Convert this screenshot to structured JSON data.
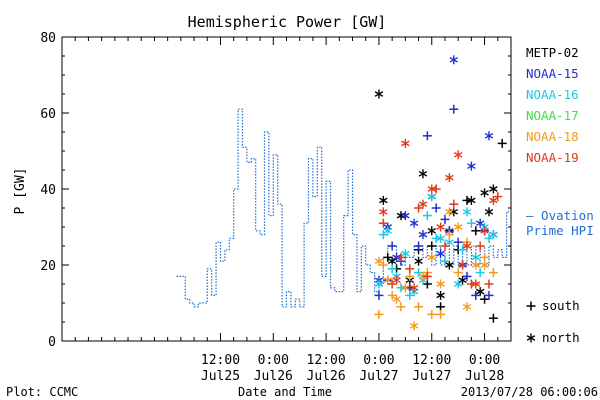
{
  "chart_data": {
    "type": "scatter",
    "title": "Hemispheric Power [GW]",
    "ylabel": "P [GW]",
    "xlabel": "Date and Time",
    "ylim": [
      0,
      80
    ],
    "y_ticks": [
      0,
      20,
      40,
      60,
      80
    ],
    "x_unit": "hours since Jul24 00:00",
    "xlim": [
      0,
      102
    ],
    "x_ticks": [
      {
        "x": 36,
        "time": "12:00",
        "date": "Jul25"
      },
      {
        "x": 48,
        "time": "0:00",
        "date": "Jul26"
      },
      {
        "x": 60,
        "time": "12:00",
        "date": "Jul26"
      },
      {
        "x": 72,
        "time": "0:00",
        "date": "Jul27"
      },
      {
        "x": 84,
        "time": "12:00",
        "date": "Jul27"
      },
      {
        "x": 96,
        "time": "0:00",
        "date": "Jul28"
      }
    ],
    "legend": {
      "satellites": [
        {
          "name": "METP-02",
          "color": "#000000"
        },
        {
          "name": "NOAA-15",
          "color": "#1f2fd0"
        },
        {
          "name": "NOAA-16",
          "color": "#1ec8e6"
        },
        {
          "name": "NOAA-17",
          "color": "#44e044"
        },
        {
          "name": "NOAA-18",
          "color": "#f39a1e"
        },
        {
          "name": "NOAA-19",
          "color": "#e03a1e"
        }
      ],
      "ovation_label_1": "— Ovation",
      "ovation_label_2": "Prime HPI",
      "ovation_color": "#1f6fd0",
      "south_label": "south",
      "north_label": "north"
    },
    "ovation_step": {
      "x": [
        26,
        27,
        28,
        29,
        30,
        31,
        32,
        33,
        34,
        35,
        36,
        37,
        38,
        39,
        40,
        41,
        42,
        43,
        44,
        45,
        46,
        47,
        48,
        49,
        50,
        51,
        52,
        53,
        54,
        55,
        56,
        57,
        58,
        59,
        60,
        61,
        62,
        63,
        64,
        65,
        66,
        67,
        68,
        69,
        70,
        71,
        72,
        73,
        74,
        75,
        76,
        77,
        78,
        79,
        80,
        81,
        82,
        83,
        84,
        85,
        86,
        87,
        88,
        89,
        90,
        91,
        92,
        93,
        94,
        95,
        96,
        97,
        98,
        99,
        100,
        101,
        102
      ],
      "y": [
        17,
        17,
        11,
        10,
        9,
        10,
        10,
        19,
        12,
        26,
        21,
        24,
        27,
        40,
        61,
        51,
        47,
        48,
        29,
        28,
        55,
        33,
        49,
        36,
        9,
        13,
        9,
        11,
        9,
        31,
        48,
        38,
        51,
        17,
        42,
        14,
        13,
        13,
        33,
        45,
        28,
        13,
        25,
        20,
        18,
        13,
        15,
        22,
        25,
        25,
        22,
        20,
        22,
        22,
        25,
        25,
        22,
        25,
        20,
        25,
        20,
        25,
        20,
        25,
        20,
        25,
        20,
        25,
        20,
        25,
        20,
        25,
        22,
        24,
        22,
        34,
        34
      ]
    },
    "scatter": [
      {
        "sat": "METP-02",
        "hemi": "south",
        "points": [
          [
            74,
            22
          ],
          [
            76,
            19
          ],
          [
            81,
            24
          ],
          [
            83,
            15
          ],
          [
            84,
            25
          ],
          [
            86,
            9
          ],
          [
            88,
            29
          ],
          [
            90,
            24
          ],
          [
            92,
            37
          ],
          [
            94,
            29
          ],
          [
            96,
            11
          ],
          [
            98,
            6
          ],
          [
            100,
            52
          ]
        ]
      },
      {
        "sat": "METP-02",
        "hemi": "north",
        "points": [
          [
            72,
            65
          ],
          [
            73,
            37
          ],
          [
            75,
            21
          ],
          [
            77,
            33
          ],
          [
            79,
            16
          ],
          [
            81,
            21
          ],
          [
            82,
            44
          ],
          [
            84,
            29
          ],
          [
            86,
            12
          ],
          [
            88,
            20
          ],
          [
            89,
            34
          ],
          [
            91,
            16
          ],
          [
            93,
            37
          ],
          [
            95,
            13
          ],
          [
            96,
            39
          ],
          [
            97,
            34
          ],
          [
            98,
            40
          ]
        ]
      },
      {
        "sat": "NOAA-15",
        "hemi": "south",
        "points": [
          [
            72,
            12
          ],
          [
            74,
            16
          ],
          [
            75,
            25
          ],
          [
            77,
            21
          ],
          [
            79,
            14
          ],
          [
            81,
            25
          ],
          [
            83,
            54
          ],
          [
            85,
            35
          ],
          [
            87,
            32
          ],
          [
            89,
            61
          ],
          [
            90,
            26
          ],
          [
            92,
            17
          ],
          [
            94,
            12
          ],
          [
            96,
            29
          ],
          [
            97,
            12
          ]
        ]
      },
      {
        "sat": "NOAA-15",
        "hemi": "north",
        "points": [
          [
            72,
            16
          ],
          [
            74,
            30
          ],
          [
            76,
            22
          ],
          [
            78,
            33
          ],
          [
            80,
            31
          ],
          [
            82,
            28
          ],
          [
            84,
            38
          ],
          [
            86,
            23
          ],
          [
            88,
            29
          ],
          [
            89,
            74
          ],
          [
            91,
            20
          ],
          [
            93,
            46
          ],
          [
            95,
            31
          ],
          [
            97,
            54
          ],
          [
            98,
            28
          ]
        ]
      },
      {
        "sat": "NOAA-16",
        "hemi": "south",
        "points": [
          [
            73,
            28
          ],
          [
            75,
            19
          ],
          [
            77,
            14
          ],
          [
            79,
            12
          ],
          [
            81,
            18
          ],
          [
            83,
            33
          ],
          [
            85,
            27
          ],
          [
            87,
            21
          ],
          [
            89,
            36
          ],
          [
            91,
            24
          ],
          [
            93,
            31
          ],
          [
            95,
            18
          ],
          [
            97,
            27
          ]
        ]
      },
      {
        "sat": "NOAA-16",
        "hemi": "north",
        "points": [
          [
            72,
            15
          ],
          [
            74,
            29
          ],
          [
            76,
            17
          ],
          [
            78,
            23
          ],
          [
            80,
            13
          ],
          [
            82,
            16
          ],
          [
            84,
            38
          ],
          [
            86,
            27
          ],
          [
            88,
            26
          ],
          [
            90,
            15
          ],
          [
            92,
            34
          ],
          [
            94,
            22
          ],
          [
            96,
            30
          ],
          [
            98,
            28
          ]
        ]
      },
      {
        "sat": "NOAA-18",
        "hemi": "south",
        "points": [
          [
            72,
            7
          ],
          [
            73,
            20
          ],
          [
            75,
            12
          ],
          [
            77,
            9
          ],
          [
            79,
            17
          ],
          [
            81,
            9
          ],
          [
            83,
            18
          ],
          [
            84,
            7
          ],
          [
            86,
            7
          ],
          [
            88,
            28
          ],
          [
            90,
            18
          ],
          [
            92,
            26
          ],
          [
            94,
            15
          ],
          [
            96,
            22
          ],
          [
            98,
            18
          ]
        ]
      },
      {
        "sat": "NOAA-18",
        "hemi": "north",
        "points": [
          [
            72,
            21
          ],
          [
            74,
            16
          ],
          [
            76,
            11
          ],
          [
            78,
            14
          ],
          [
            80,
            4
          ],
          [
            82,
            17
          ],
          [
            84,
            22
          ],
          [
            86,
            15
          ],
          [
            88,
            34
          ],
          [
            90,
            30
          ],
          [
            92,
            9
          ],
          [
            94,
            20
          ],
          [
            96,
            20
          ]
        ]
      },
      {
        "sat": "NOAA-19",
        "hemi": "south",
        "points": [
          [
            73,
            31
          ],
          [
            75,
            15
          ],
          [
            77,
            22
          ],
          [
            79,
            19
          ],
          [
            81,
            35
          ],
          [
            83,
            17
          ],
          [
            85,
            40
          ],
          [
            87,
            25
          ],
          [
            89,
            36
          ],
          [
            91,
            20
          ],
          [
            93,
            15
          ],
          [
            95,
            25
          ],
          [
            97,
            15
          ],
          [
            99,
            38
          ]
        ]
      },
      {
        "sat": "NOAA-19",
        "hemi": "north",
        "points": [
          [
            73,
            34
          ],
          [
            76,
            16
          ],
          [
            78,
            52
          ],
          [
            80,
            14
          ],
          [
            82,
            36
          ],
          [
            84,
            40
          ],
          [
            86,
            30
          ],
          [
            88,
            43
          ],
          [
            90,
            49
          ],
          [
            92,
            25
          ],
          [
            94,
            15
          ],
          [
            96,
            29
          ],
          [
            98,
            37
          ]
        ]
      }
    ]
  },
  "footer": {
    "left": "Plot: CCMC",
    "center": "Date and Time",
    "right": "2013/07/28 06:00:06"
  }
}
